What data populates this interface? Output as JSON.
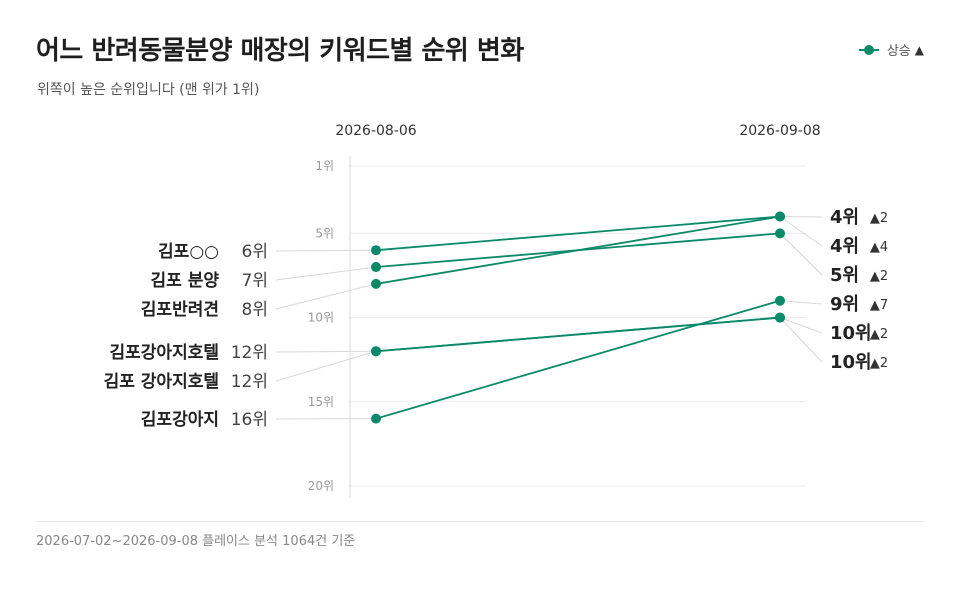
{
  "title": "어느 반려동물분양 매장의 키워드별 순위 변화",
  "subtitle": "위쪽이 높은 순위입니다 (맨 위가 1위)",
  "legend": {
    "label": "상승",
    "arrow": "▲"
  },
  "footer": "2026-07-02~2026-09-08 플레이스 분석 1064건 기준",
  "colors": {
    "line": "#0b8a6a",
    "grid": "#ececec",
    "axis": "#d9d9d9",
    "connector": "#d8d8d8",
    "text": "#222222",
    "muted": "#888888"
  },
  "chart_data": {
    "type": "slope",
    "x": [
      "2026-08-06",
      "2026-09-08"
    ],
    "y_ticks": [
      {
        "value": 1,
        "label": "1위"
      },
      {
        "value": 5,
        "label": "5위"
      },
      {
        "value": 10,
        "label": "10위"
      },
      {
        "value": 15,
        "label": "15위"
      },
      {
        "value": 20,
        "label": "20위"
      }
    ],
    "ylim": [
      1,
      20
    ],
    "y_reversed": true,
    "series": [
      {
        "name": "김포○○",
        "start": 6,
        "end": 4,
        "start_label": "6위",
        "end_label": "4위",
        "change_label": "▲2"
      },
      {
        "name": "김포 분양",
        "start": 7,
        "end": 5,
        "start_label": "7위",
        "end_label": "5위",
        "change_label": "▲2"
      },
      {
        "name": "김포반려견",
        "start": 8,
        "end": 4,
        "start_label": "8위",
        "end_label": "4위",
        "change_label": "▲4"
      },
      {
        "name": "김포강아지호텔",
        "start": 12,
        "end": 10,
        "start_label": "12위",
        "end_label": "10위",
        "change_label": "▲2"
      },
      {
        "name": "김포 강아지호텔",
        "start": 12,
        "end": 10,
        "start_label": "12위",
        "end_label": "10위",
        "change_label": "▲2"
      },
      {
        "name": "김포강아지",
        "start": 16,
        "end": 9,
        "start_label": "16위",
        "end_label": "9위",
        "change_label": "▲7"
      }
    ]
  }
}
